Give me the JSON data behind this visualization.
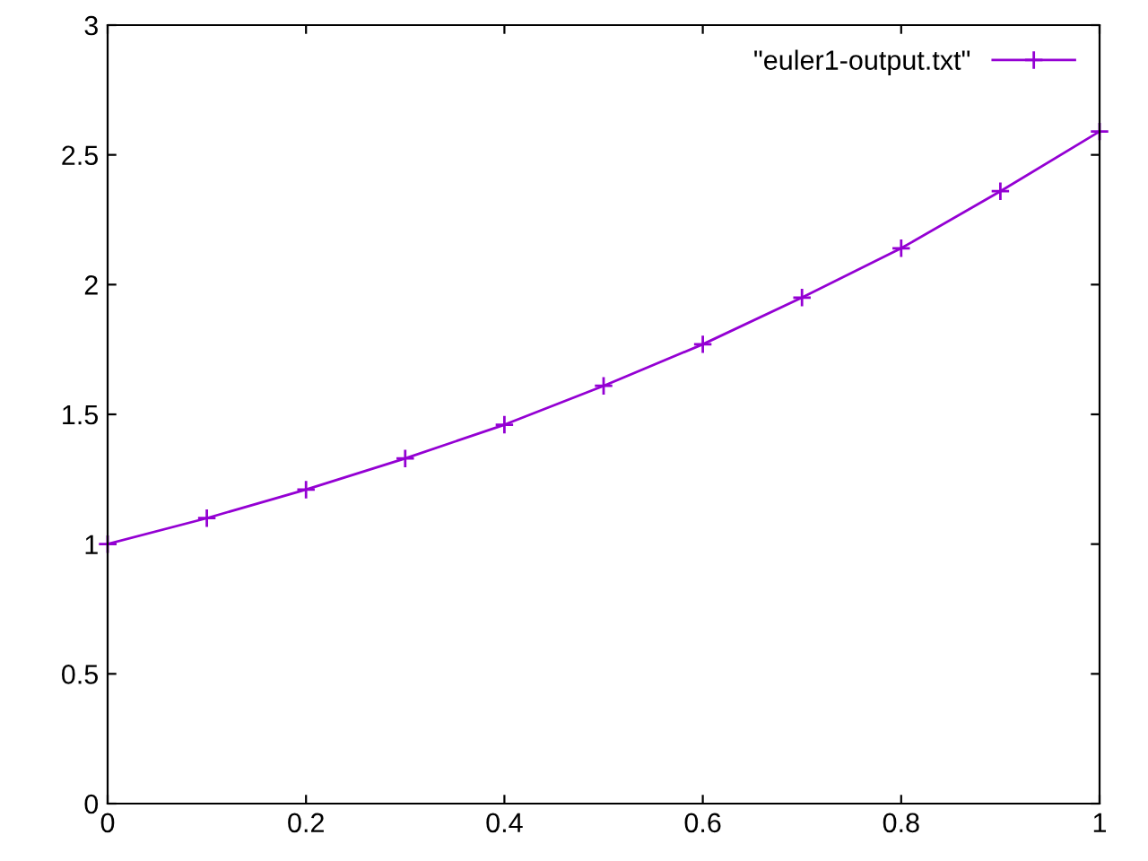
{
  "chart_data": {
    "type": "line",
    "x": [
      0,
      0.1,
      0.2,
      0.3,
      0.4,
      0.5,
      0.6,
      0.7,
      0.8,
      0.9,
      1
    ],
    "series": [
      {
        "name": "\"euler1-output.txt\"",
        "color": "#9400d3",
        "values": [
          1,
          1.1,
          1.21,
          1.33,
          1.46,
          1.61,
          1.77,
          1.95,
          2.14,
          2.36,
          2.59
        ]
      }
    ],
    "xlim": [
      0,
      1
    ],
    "xticks": [
      0,
      0.2,
      0.4,
      0.6,
      0.8,
      1
    ],
    "ylim": [
      0,
      3
    ],
    "yticks": [
      0,
      0.5,
      1,
      1.5,
      2,
      2.5,
      3
    ],
    "grid": false,
    "legend": "top right",
    "marker": "cross",
    "line_style": "solid"
  }
}
